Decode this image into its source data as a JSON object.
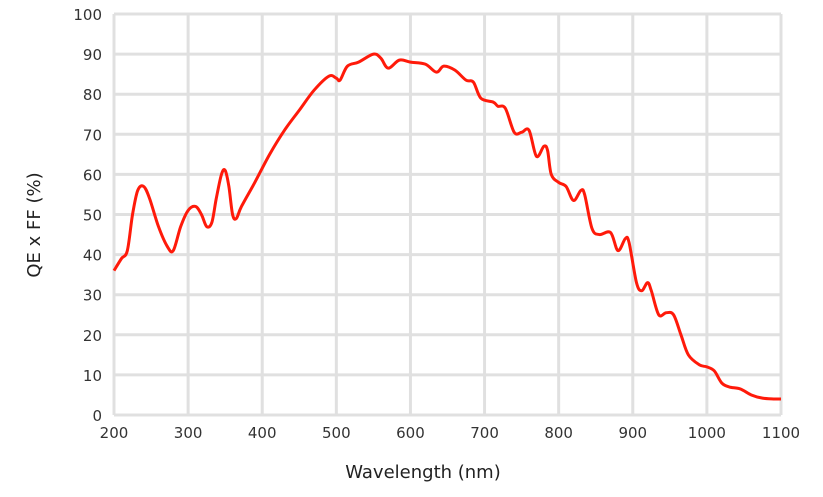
{
  "chart_data": {
    "type": "line",
    "title": "",
    "xlabel": "Wavelength (nm)",
    "ylabel": "QE x FF (%)",
    "xlim": [
      200,
      1100
    ],
    "ylim": [
      0,
      100
    ],
    "xticks": [
      200,
      300,
      400,
      500,
      600,
      700,
      800,
      900,
      1000,
      1100
    ],
    "yticks": [
      0,
      10,
      20,
      30,
      40,
      50,
      60,
      70,
      80,
      90,
      100
    ],
    "grid": true,
    "line_color": "#ff1a0a",
    "grid_color": "#e0e0e0",
    "series": [
      {
        "x": [
          200,
          210,
          218,
          225,
          232,
          240,
          248,
          260,
          272,
          280,
          290,
          300,
          310,
          318,
          325,
          332,
          338,
          345,
          350,
          355,
          360,
          365,
          372,
          390,
          410,
          430,
          450,
          470,
          490,
          500,
          505,
          515,
          530,
          550,
          560,
          570,
          585,
          600,
          620,
          635,
          645,
          660,
          675,
          685,
          695,
          712,
          718,
          728,
          740,
          750,
          760,
          770,
          780,
          785,
          790,
          800,
          810,
          820,
          830,
          835,
          845,
          855,
          870,
          880,
          890,
          895,
          905,
          912,
          920,
          925,
          935,
          945,
          955,
          965,
          975,
          990,
          1000,
          1010,
          1020,
          1030,
          1045,
          1060,
          1075,
          1090,
          1100
        ],
        "y": [
          36,
          39,
          41,
          50,
          56,
          57,
          54,
          47,
          42,
          41,
          47,
          51,
          52,
          50,
          47,
          48,
          54,
          60,
          61,
          57,
          50,
          49,
          52,
          58,
          65,
          71,
          76,
          81,
          84.5,
          84,
          83.5,
          87,
          88,
          90,
          89,
          86.5,
          88.5,
          88,
          87.5,
          85.5,
          87,
          86,
          83.5,
          83,
          79,
          78,
          77,
          76.5,
          70.5,
          70.5,
          71,
          64.5,
          67,
          66,
          60,
          58,
          57,
          53.5,
          56,
          55,
          46.5,
          45,
          45.5,
          41,
          44,
          43,
          33,
          31,
          33,
          31,
          25,
          25.5,
          25,
          20,
          15,
          12.5,
          12,
          11,
          8,
          7,
          6.5,
          5,
          4.2,
          4,
          4
        ]
      }
    ]
  }
}
